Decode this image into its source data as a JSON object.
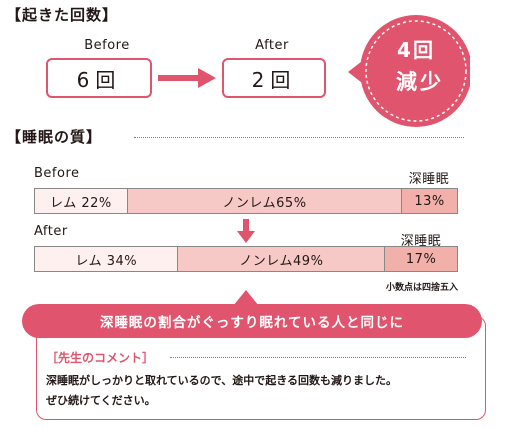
{
  "wakeups": {
    "heading": "【起きた回数】",
    "before_label": "Before",
    "after_label": "After",
    "before_value": "6回",
    "after_value": "2回",
    "reduction_line1": "4回",
    "reduction_line2": "減少"
  },
  "sleep_quality": {
    "heading": "【睡眠の質】",
    "deep_sleep_label": "深睡眠",
    "before": {
      "label": "Before",
      "rem": "レム 22%",
      "nonrem": "ノンレム65%",
      "deep": "13%",
      "shares": {
        "rem": 22,
        "nonrem": 65,
        "deep": 13
      }
    },
    "after": {
      "label": "After",
      "rem": "レム 34%",
      "nonrem": "ノンレム49%",
      "deep": "17%",
      "shares": {
        "rem": 34,
        "nonrem": 49,
        "deep": 17
      }
    },
    "rounding_note": "小数点は四捨五入"
  },
  "conclusion": {
    "banner": "深睡眠の割合がぐっすり眠れている人と同じに",
    "comment_heading": "［先生のコメント］",
    "comment_line1": "深睡眠がしっかりと取れているので、途中で起きる回数も減りました。",
    "comment_line2": "ぜひ続けてください。"
  },
  "colors": {
    "accent": "#e0556d",
    "rem_fill": "#fdf0ee",
    "nonrem_fill": "#f7c9c6",
    "deep_fill": "#f2b0ab",
    "text": "#231815"
  }
}
